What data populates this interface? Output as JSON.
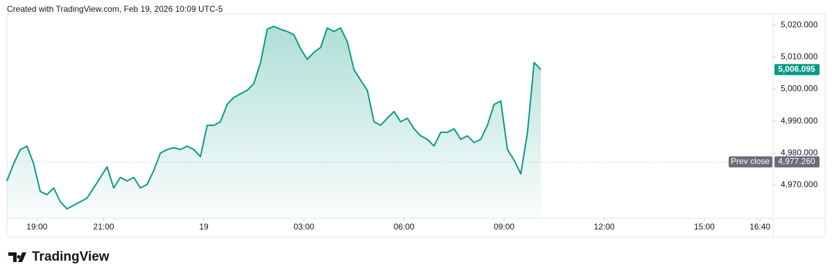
{
  "header": "Created with TradingView.com, Feb 19, 2026 10:09 UTC-5",
  "brand": "TradingView",
  "chart_data": {
    "type": "area",
    "color": "#089981",
    "x": [
      18.1,
      18.3,
      18.5,
      18.7,
      18.9,
      19.1,
      19.3,
      19.5,
      19.7,
      19.9,
      20.1,
      20.3,
      20.5,
      20.7,
      20.9,
      21.1,
      21.3,
      21.5,
      21.7,
      21.9,
      22.1,
      22.3,
      22.5,
      22.7,
      22.9,
      23.1,
      23.3,
      23.5,
      23.7,
      23.9,
      24.1,
      24.3,
      24.5,
      24.7,
      24.9,
      25.1,
      25.3,
      25.5,
      25.7,
      25.9,
      26.1,
      26.3,
      26.5,
      26.7,
      26.9,
      27.1,
      27.3,
      27.5,
      27.7,
      27.9,
      28.1,
      28.3,
      28.5,
      28.7,
      28.9,
      29.1,
      29.3,
      29.5,
      29.7,
      29.9,
      30.1,
      30.3,
      30.5,
      30.7,
      30.9,
      31.1,
      31.3,
      31.5,
      31.7,
      31.9,
      32.1,
      32.3,
      32.5,
      32.7,
      32.9,
      33.1,
      33.3,
      33.5,
      33.7,
      33.9,
      34.1
    ],
    "values": [
      4971.3,
      4976.7,
      4981.1,
      4982.2,
      4976.7,
      4968.0,
      4967.0,
      4969.1,
      4964.8,
      4962.6,
      4963.7,
      4964.8,
      4965.9,
      4969.1,
      4972.4,
      4975.7,
      4969.1,
      4972.4,
      4971.3,
      4972.4,
      4969.1,
      4970.2,
      4974.6,
      4980.0,
      4981.1,
      4981.7,
      4981.1,
      4982.2,
      4981.1,
      4978.9,
      4988.7,
      4988.7,
      4989.8,
      4995.2,
      4997.4,
      4998.5,
      4999.6,
      5001.7,
      5008.3,
      5018.7,
      5019.6,
      5018.7,
      5018.0,
      5017.0,
      5012.6,
      5009.3,
      5011.5,
      5013.0,
      5019.1,
      5018.0,
      5019.1,
      5014.8,
      5006.1,
      5002.8,
      4999.6,
      4989.8,
      4988.7,
      4990.9,
      4993.0,
      4989.8,
      4990.9,
      4987.6,
      4985.4,
      4984.3,
      4982.2,
      4986.5,
      4986.5,
      4987.6,
      4984.3,
      4985.4,
      4983.3,
      4984.3,
      4988.7,
      4995.2,
      4996.3,
      4981.1,
      4977.8,
      4973.5,
      4986.5,
      5008.3,
      5006.1
    ],
    "xlim": [
      18.1,
      41.06
    ],
    "ylim": [
      4959.6,
      5023.5
    ],
    "xticks": [
      {
        "value": 19,
        "label": "19:00"
      },
      {
        "value": 21,
        "label": "21:00"
      },
      {
        "value": 24,
        "label": "19"
      },
      {
        "value": 27,
        "label": "03:00"
      },
      {
        "value": 30,
        "label": "06:00"
      },
      {
        "value": 33,
        "label": "09:00"
      },
      {
        "value": 36,
        "label": "12:00"
      },
      {
        "value": 39,
        "label": "15:00"
      },
      {
        "value": 40.667,
        "label": "16:40"
      }
    ],
    "yticks": [
      {
        "value": 4970,
        "label": "4,970.000"
      },
      {
        "value": 4980,
        "label": "4,980.000"
      },
      {
        "value": 4990,
        "label": "4,990.000"
      },
      {
        "value": 5000,
        "label": "5,000.000"
      },
      {
        "value": 5010,
        "label": "5,010.000"
      },
      {
        "value": 5020,
        "label": "5,020.000"
      }
    ],
    "last": {
      "value": 5006.095,
      "label": "5,006.095"
    },
    "prev_close": {
      "name": "Prev close",
      "value": 4977.26,
      "label": "4,977.260"
    }
  }
}
